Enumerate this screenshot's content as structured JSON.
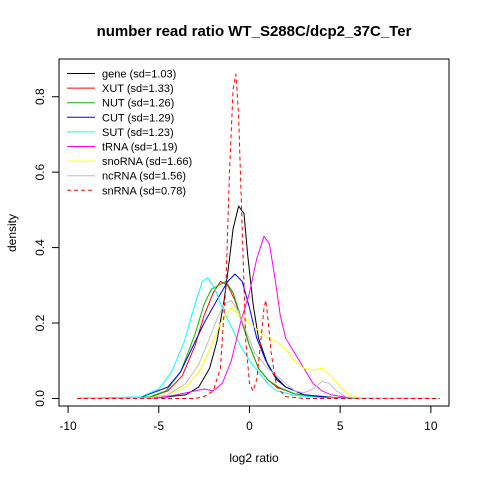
{
  "chart_data": {
    "type": "line",
    "title": "number read ratio WT_S288C/dcp2_37C_Ter",
    "xlabel": "log2 ratio",
    "ylabel": "density",
    "xlim": [
      -10.5,
      11.0
    ],
    "ylim": [
      -0.02,
      0.9
    ],
    "xticks": [
      -10,
      -5,
      0,
      5,
      10
    ],
    "yticks": [
      0.0,
      0.2,
      0.4,
      0.6,
      0.8
    ],
    "legend_position": "top-left",
    "series": [
      {
        "name": "gene (sd=1.03)",
        "color": "#000000",
        "dash": false,
        "points": [
          [
            -9.5,
            0
          ],
          [
            -5,
            0.002
          ],
          [
            -3.5,
            0.01
          ],
          [
            -2.8,
            0.03
          ],
          [
            -2.2,
            0.08
          ],
          [
            -1.8,
            0.15
          ],
          [
            -1.4,
            0.26
          ],
          [
            -1.1,
            0.37
          ],
          [
            -0.9,
            0.45
          ],
          [
            -0.6,
            0.51
          ],
          [
            -0.3,
            0.49
          ],
          [
            -0.1,
            0.38
          ],
          [
            0.2,
            0.25
          ],
          [
            0.5,
            0.16
          ],
          [
            1.0,
            0.09
          ],
          [
            1.5,
            0.05
          ],
          [
            2.0,
            0.03
          ],
          [
            3.0,
            0.01
          ],
          [
            4.5,
            0.003
          ],
          [
            6,
            0
          ],
          [
            10.5,
            0
          ]
        ]
      },
      {
        "name": "XUT (sd=1.33)",
        "color": "#ff0000",
        "dash": false,
        "points": [
          [
            -9.5,
            0
          ],
          [
            -5.5,
            0.003
          ],
          [
            -4.5,
            0.02
          ],
          [
            -3.7,
            0.06
          ],
          [
            -3.0,
            0.14
          ],
          [
            -2.5,
            0.22
          ],
          [
            -2.0,
            0.28
          ],
          [
            -1.6,
            0.31
          ],
          [
            -1.2,
            0.3
          ],
          [
            -0.8,
            0.26
          ],
          [
            -0.4,
            0.2
          ],
          [
            0.0,
            0.14
          ],
          [
            0.5,
            0.08
          ],
          [
            1.0,
            0.05
          ],
          [
            1.5,
            0.03
          ],
          [
            2.5,
            0.012
          ],
          [
            4,
            0.003
          ],
          [
            6,
            0
          ],
          [
            10.5,
            0
          ]
        ]
      },
      {
        "name": "NUT (sd=1.26)",
        "color": "#00bb00",
        "dash": false,
        "points": [
          [
            -9.5,
            0
          ],
          [
            -5.5,
            0.004
          ],
          [
            -4.6,
            0.02
          ],
          [
            -3.8,
            0.07
          ],
          [
            -3.0,
            0.17
          ],
          [
            -2.5,
            0.25
          ],
          [
            -2.1,
            0.29
          ],
          [
            -1.7,
            0.3
          ],
          [
            -1.3,
            0.31
          ],
          [
            -0.9,
            0.28
          ],
          [
            -0.5,
            0.22
          ],
          [
            0.0,
            0.14
          ],
          [
            0.5,
            0.08
          ],
          [
            1.0,
            0.05
          ],
          [
            1.6,
            0.03
          ],
          [
            2.5,
            0.012
          ],
          [
            4,
            0.003
          ],
          [
            6,
            0
          ],
          [
            10.5,
            0
          ]
        ]
      },
      {
        "name": "CUT (sd=1.29)",
        "color": "#0000ff",
        "dash": false,
        "points": [
          [
            -9.5,
            0
          ],
          [
            -6,
            0.003
          ],
          [
            -4.5,
            0.03
          ],
          [
            -3.8,
            0.07
          ],
          [
            -3.2,
            0.13
          ],
          [
            -2.5,
            0.2
          ],
          [
            -1.8,
            0.26
          ],
          [
            -1.2,
            0.31
          ],
          [
            -0.8,
            0.33
          ],
          [
            -0.4,
            0.31
          ],
          [
            0.0,
            0.24
          ],
          [
            0.4,
            0.16
          ],
          [
            0.9,
            0.1
          ],
          [
            1.4,
            0.06
          ],
          [
            2.0,
            0.03
          ],
          [
            3.0,
            0.01
          ],
          [
            4.5,
            0.002
          ],
          [
            6,
            0
          ],
          [
            10.5,
            0
          ]
        ]
      },
      {
        "name": "SUT (sd=1.23)",
        "color": "#00ffff",
        "dash": false,
        "points": [
          [
            -9.5,
            0
          ],
          [
            -6,
            0.004
          ],
          [
            -5,
            0.025
          ],
          [
            -4.3,
            0.07
          ],
          [
            -3.6,
            0.15
          ],
          [
            -3.0,
            0.25
          ],
          [
            -2.6,
            0.31
          ],
          [
            -2.3,
            0.32
          ],
          [
            -1.9,
            0.29
          ],
          [
            -1.5,
            0.24
          ],
          [
            -1.0,
            0.19
          ],
          [
            -0.5,
            0.14
          ],
          [
            0.0,
            0.1
          ],
          [
            0.5,
            0.07
          ],
          [
            1.0,
            0.04
          ],
          [
            1.5,
            0.02
          ],
          [
            2.5,
            0.008
          ],
          [
            4,
            0.002
          ],
          [
            6,
            0
          ],
          [
            10.5,
            0
          ]
        ]
      },
      {
        "name": "tRNA (sd=1.19)",
        "color": "#ff00ff",
        "dash": false,
        "points": [
          [
            -9.5,
            0
          ],
          [
            -5,
            0.002
          ],
          [
            -4,
            0.01
          ],
          [
            -3.0,
            0.02
          ],
          [
            -2.5,
            0.025
          ],
          [
            -2.0,
            0.02
          ],
          [
            -1.5,
            0.04
          ],
          [
            -1.0,
            0.1
          ],
          [
            -0.5,
            0.2
          ],
          [
            0.0,
            0.28
          ],
          [
            0.4,
            0.37
          ],
          [
            0.8,
            0.43
          ],
          [
            1.1,
            0.41
          ],
          [
            1.4,
            0.32
          ],
          [
            1.7,
            0.22
          ],
          [
            2.0,
            0.16
          ],
          [
            2.5,
            0.12
          ],
          [
            3.0,
            0.08
          ],
          [
            3.5,
            0.04
          ],
          [
            4.0,
            0.02
          ],
          [
            4.5,
            0.01
          ],
          [
            5.5,
            0.002
          ],
          [
            10.5,
            0
          ]
        ]
      },
      {
        "name": "snoRNA (sd=1.66)",
        "color": "#ffff00",
        "dash": false,
        "points": [
          [
            -9.5,
            0
          ],
          [
            -5.5,
            0.002
          ],
          [
            -4.5,
            0.01
          ],
          [
            -3.5,
            0.03
          ],
          [
            -2.8,
            0.07
          ],
          [
            -2.2,
            0.13
          ],
          [
            -1.5,
            0.21
          ],
          [
            -1.0,
            0.24
          ],
          [
            -0.5,
            0.22
          ],
          [
            0.0,
            0.2
          ],
          [
            0.5,
            0.18
          ],
          [
            1.0,
            0.16
          ],
          [
            1.5,
            0.15
          ],
          [
            2.0,
            0.13
          ],
          [
            2.5,
            0.1
          ],
          [
            3.0,
            0.08
          ],
          [
            3.5,
            0.075
          ],
          [
            4.0,
            0.08
          ],
          [
            4.5,
            0.06
          ],
          [
            5.0,
            0.03
          ],
          [
            5.5,
            0.01
          ],
          [
            6.0,
            0.002
          ],
          [
            10.5,
            0
          ]
        ]
      },
      {
        "name": "ncRNA (sd=1.56)",
        "color": "#bebebe",
        "dash": false,
        "points": [
          [
            -9.5,
            0
          ],
          [
            -5.5,
            0.002
          ],
          [
            -4.5,
            0.01
          ],
          [
            -3.5,
            0.04
          ],
          [
            -2.8,
            0.09
          ],
          [
            -2.2,
            0.16
          ],
          [
            -1.8,
            0.21
          ],
          [
            -1.4,
            0.25
          ],
          [
            -1.0,
            0.26
          ],
          [
            -0.6,
            0.23
          ],
          [
            -0.2,
            0.18
          ],
          [
            0.3,
            0.12
          ],
          [
            1.0,
            0.08
          ],
          [
            1.5,
            0.06
          ],
          [
            2.0,
            0.04
          ],
          [
            2.5,
            0.02
          ],
          [
            3.0,
            0.015
          ],
          [
            3.5,
            0.025
          ],
          [
            4.0,
            0.045
          ],
          [
            4.4,
            0.04
          ],
          [
            4.8,
            0.02
          ],
          [
            5.3,
            0.005
          ],
          [
            6,
            0
          ],
          [
            10.5,
            0
          ]
        ]
      },
      {
        "name": "snRNA (sd=0.78)",
        "color": "#ff0000",
        "dash": true,
        "points": [
          [
            -9.5,
            0
          ],
          [
            -3,
            0
          ],
          [
            -2.5,
            0.005
          ],
          [
            -2.0,
            0.02
          ],
          [
            -1.6,
            0.08
          ],
          [
            -1.3,
            0.3
          ],
          [
            -1.1,
            0.6
          ],
          [
            -0.9,
            0.82
          ],
          [
            -0.75,
            0.86
          ],
          [
            -0.6,
            0.75
          ],
          [
            -0.4,
            0.45
          ],
          [
            -0.2,
            0.15
          ],
          [
            0.0,
            0.04
          ],
          [
            0.2,
            0.02
          ],
          [
            0.4,
            0.05
          ],
          [
            0.6,
            0.14
          ],
          [
            0.8,
            0.24
          ],
          [
            0.9,
            0.26
          ],
          [
            1.0,
            0.22
          ],
          [
            1.2,
            0.12
          ],
          [
            1.5,
            0.03
          ],
          [
            2.0,
            0.005
          ],
          [
            3,
            0
          ],
          [
            10.5,
            0
          ]
        ]
      }
    ]
  }
}
